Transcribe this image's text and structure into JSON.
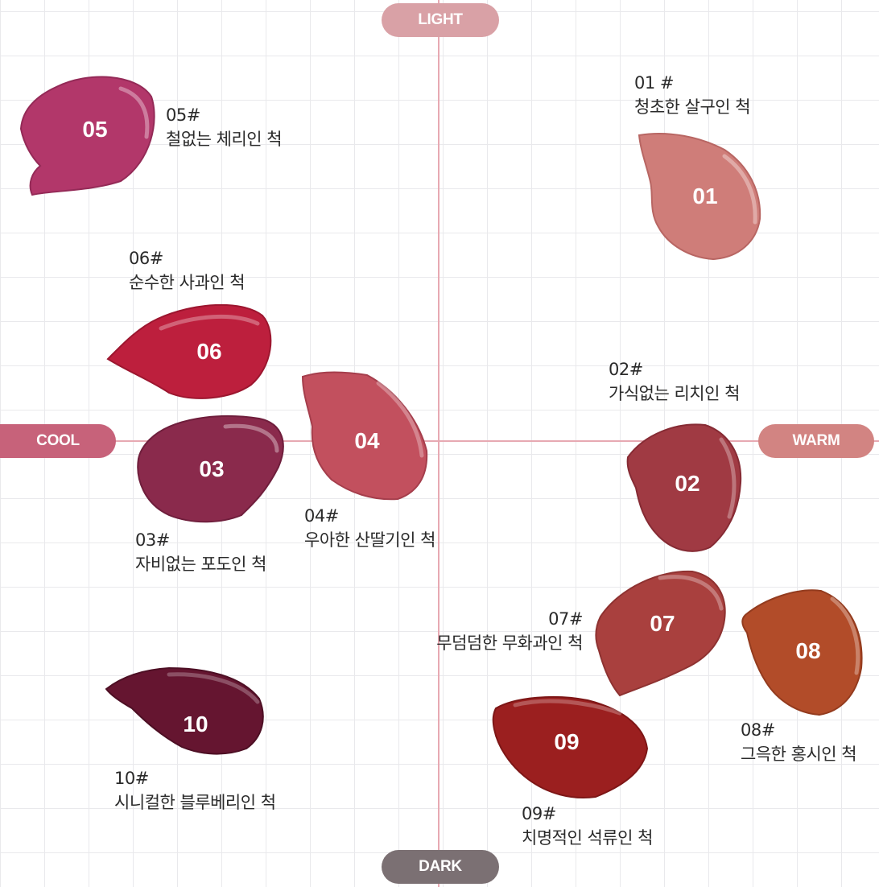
{
  "axes": {
    "top": "LIGHT",
    "bottom": "DARK",
    "left": "COOL",
    "right": "WARM",
    "colors": {
      "light": "#d9a1a6",
      "dark": "#7b7073",
      "cool": "#c7627a",
      "warm": "#d28482",
      "line": "#e7a9b2"
    }
  },
  "swatches": [
    {
      "num": "01",
      "code": "01 #",
      "name": "청초한 살구인 척",
      "color": "#cf7d79",
      "shade": "#b86663"
    },
    {
      "num": "02",
      "code": "02#",
      "name": "가식없는 리치인 척",
      "color": "#a03a43",
      "shade": "#862b34"
    },
    {
      "num": "03",
      "code": "03#",
      "name": "자비없는 포도인 척",
      "color": "#8a2a4c",
      "shade": "#6f1e3c"
    },
    {
      "num": "04",
      "code": "04#",
      "name": "우아한 산딸기인 척",
      "color": "#c2505e",
      "shade": "#a53e4c"
    },
    {
      "num": "05",
      "code": "05#",
      "name": "철없는 체리인 척",
      "color": "#b2376a",
      "shade": "#942a57"
    },
    {
      "num": "06",
      "code": "06#",
      "name": "순수한 사과인 척",
      "color": "#bd1f3d",
      "shade": "#9c162f"
    },
    {
      "num": "07",
      "code": "07#",
      "name": "무덤덤한 무화과인 척",
      "color": "#a9403e",
      "shade": "#8e3231"
    },
    {
      "num": "08",
      "code": "08#",
      "name": "그윽한 홍시인 척",
      "color": "#b24c29",
      "shade": "#933b1e"
    },
    {
      "num": "09",
      "code": "09#",
      "name": "치명적인 석류인 척",
      "color": "#9b1f1f",
      "shade": "#7d1616"
    },
    {
      "num": "10",
      "code": "10#",
      "name": "시니컬한 블루베리인 척",
      "color": "#651530",
      "shade": "#4d0f24"
    }
  ]
}
